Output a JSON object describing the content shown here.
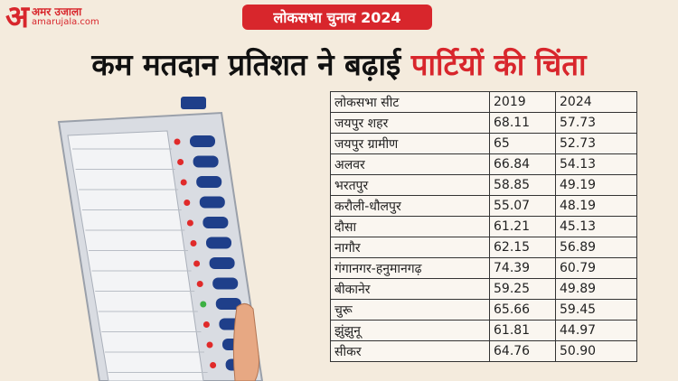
{
  "logo": {
    "mark": "अ",
    "name": "अमर उजाला",
    "site": "amarujala.com"
  },
  "badge": "लोकसभा चुनाव 2024",
  "headline": {
    "main": "कम मतदान प्रतिशत ने बढ़ाई",
    "highlight": "पार्टियों की चिंता"
  },
  "table": {
    "header": [
      "लोकसभा सीट",
      "2019",
      "2024"
    ],
    "rows": [
      [
        "जयपुर शहर",
        "68.11",
        "57.73"
      ],
      [
        "जयपुर ग्रामीण",
        "65",
        "52.73"
      ],
      [
        "अलवर",
        "66.84",
        "54.13"
      ],
      [
        "भरतपुर",
        "58.85",
        "49.19"
      ],
      [
        "करौली-धौलपुर",
        "55.07",
        "48.19"
      ],
      [
        "दौसा",
        "61.21",
        "45.13"
      ],
      [
        "नागौर",
        "62.15",
        "56.89"
      ],
      [
        "गंगानगर-हनुमानगढ़",
        "74.39",
        "60.79"
      ],
      [
        "बीकानेर",
        "59.25",
        "49.89"
      ],
      [
        "चुरू",
        "65.66",
        "59.45"
      ],
      [
        "झुंझुनू",
        "61.81",
        "44.97"
      ],
      [
        "सीकर",
        "64.76",
        "50.90"
      ]
    ]
  }
}
